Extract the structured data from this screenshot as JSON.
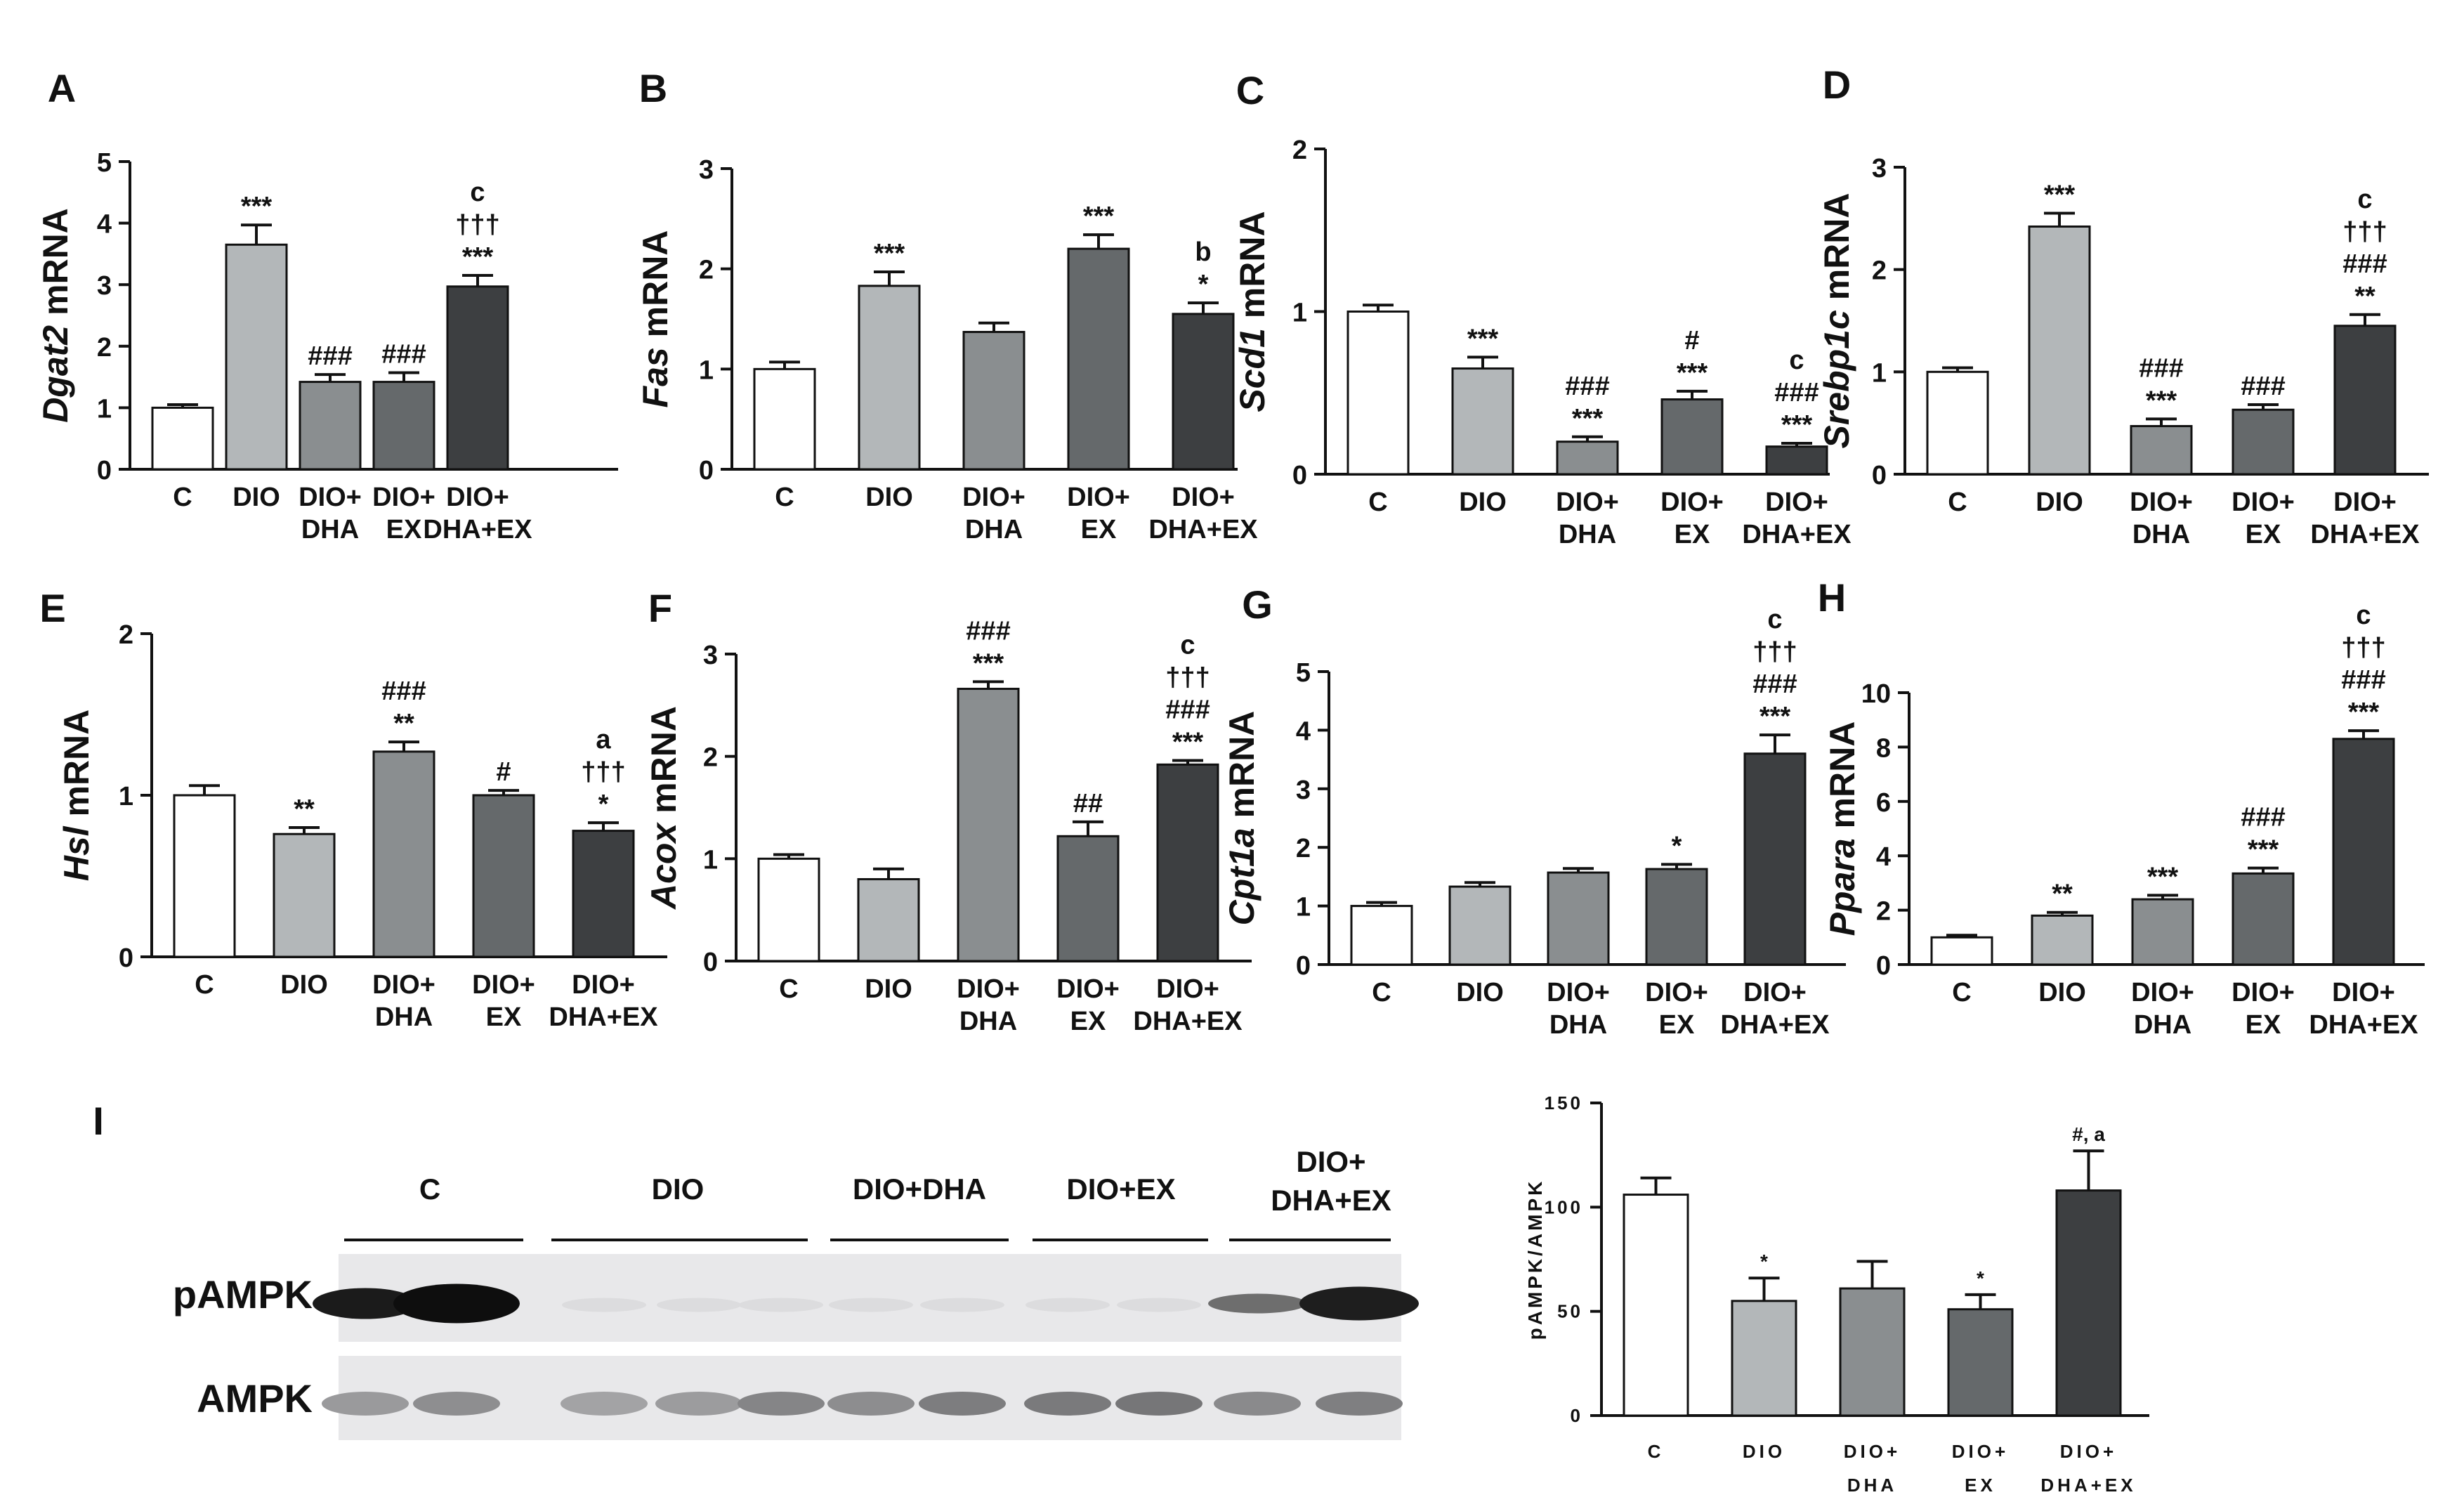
{
  "figure": {
    "colors": [
      "#ffffff",
      "#b3b7b9",
      "#8a8e90",
      "#65696b",
      "#3d3f41"
    ]
  },
  "chart_data": [
    {
      "panel": "A",
      "type": "bar",
      "ylabel_gene": "Dgat2",
      "ylabel_suffix": " mRNA",
      "categories": [
        [
          "C"
        ],
        [
          "DIO"
        ],
        [
          "DIO+",
          "DHA"
        ],
        [
          "DIO+",
          "EX"
        ],
        [
          "DIO+",
          "DHA+EX"
        ]
      ],
      "values": [
        1.0,
        3.65,
        1.42,
        1.42,
        2.97
      ],
      "errors": [
        0.05,
        0.32,
        0.12,
        0.15,
        0.18
      ],
      "ylim": [
        0,
        5
      ],
      "yticks": [
        0,
        1,
        2,
        3,
        4,
        5
      ],
      "annotations": [
        [],
        [
          "***"
        ],
        [
          "###"
        ],
        [
          "###"
        ],
        [
          "c",
          "†††",
          "***"
        ]
      ]
    },
    {
      "panel": "B",
      "type": "bar",
      "ylabel_gene": "Fas",
      "ylabel_suffix": " mRNA",
      "categories": [
        [
          "C"
        ],
        [
          "DIO"
        ],
        [
          "DIO+",
          "DHA"
        ],
        [
          "DIO+",
          "EX"
        ],
        [
          "DIO+",
          "DHA+EX"
        ]
      ],
      "values": [
        1.0,
        1.83,
        1.37,
        2.2,
        1.55
      ],
      "errors": [
        0.07,
        0.14,
        0.09,
        0.14,
        0.11
      ],
      "ylim": [
        0,
        3
      ],
      "yticks": [
        0,
        1,
        2,
        3
      ],
      "annotations": [
        [],
        [
          "***"
        ],
        [],
        [
          "***"
        ],
        [
          "b",
          "*"
        ]
      ]
    },
    {
      "panel": "C",
      "type": "bar",
      "ylabel_gene": "Scd1",
      "ylabel_suffix": " mRNA",
      "categories": [
        [
          "C"
        ],
        [
          "DIO"
        ],
        [
          "DIO+",
          "DHA"
        ],
        [
          "DIO+",
          "EX"
        ],
        [
          "DIO+",
          "DHA+EX"
        ]
      ],
      "values": [
        1.0,
        0.65,
        0.2,
        0.46,
        0.17
      ],
      "errors": [
        0.04,
        0.07,
        0.03,
        0.05,
        0.02
      ],
      "ylim": [
        0,
        2
      ],
      "yticks": [
        0,
        1,
        2
      ],
      "annotations": [
        [],
        [
          "***"
        ],
        [
          "###",
          "***"
        ],
        [
          "#",
          "***"
        ],
        [
          "c",
          "###",
          "***"
        ]
      ]
    },
    {
      "panel": "D",
      "type": "bar",
      "ylabel_gene": "Srebp1c",
      "ylabel_suffix": " mRNA",
      "categories": [
        [
          "C"
        ],
        [
          "DIO"
        ],
        [
          "DIO+",
          "DHA"
        ],
        [
          "DIO+",
          "EX"
        ],
        [
          "DIO+",
          "DHA+EX"
        ]
      ],
      "values": [
        1.0,
        2.42,
        0.47,
        0.63,
        1.45
      ],
      "errors": [
        0.04,
        0.13,
        0.07,
        0.05,
        0.11
      ],
      "ylim": [
        0,
        3
      ],
      "yticks": [
        0,
        1,
        2,
        3
      ],
      "annotations": [
        [],
        [
          "***"
        ],
        [
          "###",
          "***"
        ],
        [
          "###"
        ],
        [
          "c",
          "†††",
          "###",
          "**"
        ]
      ]
    },
    {
      "panel": "E",
      "type": "bar",
      "ylabel_gene": "Hsl",
      "ylabel_suffix": " mRNA",
      "categories": [
        [
          "C"
        ],
        [
          "DIO"
        ],
        [
          "DIO+",
          "DHA"
        ],
        [
          "DIO+",
          "EX"
        ],
        [
          "DIO+",
          "DHA+EX"
        ]
      ],
      "values": [
        1.0,
        0.76,
        1.27,
        1.0,
        0.78
      ],
      "errors": [
        0.06,
        0.04,
        0.06,
        0.03,
        0.05
      ],
      "ylim": [
        0,
        2
      ],
      "yticks": [
        0,
        1,
        2
      ],
      "annotations": [
        [],
        [
          "**"
        ],
        [
          "###",
          "**"
        ],
        [
          "#"
        ],
        [
          "a",
          "†††",
          "*"
        ]
      ]
    },
    {
      "panel": "F",
      "type": "bar",
      "ylabel_gene": "Acox",
      "ylabel_suffix": " mRNA",
      "categories": [
        [
          "C"
        ],
        [
          "DIO"
        ],
        [
          "DIO+",
          "DHA"
        ],
        [
          "DIO+",
          "EX"
        ],
        [
          "DIO+",
          "DHA+EX"
        ]
      ],
      "values": [
        1.0,
        0.8,
        2.66,
        1.22,
        1.92
      ],
      "errors": [
        0.04,
        0.1,
        0.07,
        0.14,
        0.04
      ],
      "ylim": [
        0,
        3
      ],
      "yticks": [
        0,
        1,
        2,
        3
      ],
      "annotations": [
        [],
        [],
        [
          "###",
          "***"
        ],
        [
          "##"
        ],
        [
          "c",
          "†††",
          "###",
          "***"
        ]
      ]
    },
    {
      "panel": "G",
      "type": "bar",
      "ylabel_gene": "Cpt1a",
      "ylabel_suffix": " mRNA",
      "categories": [
        [
          "C"
        ],
        [
          "DIO"
        ],
        [
          "DIO+",
          "DHA"
        ],
        [
          "DIO+",
          "EX"
        ],
        [
          "DIO+",
          "DHA+EX"
        ]
      ],
      "values": [
        1.0,
        1.33,
        1.57,
        1.63,
        3.6
      ],
      "errors": [
        0.06,
        0.07,
        0.07,
        0.08,
        0.32
      ],
      "ylim": [
        0,
        5
      ],
      "yticks": [
        0,
        1,
        2,
        3,
        4,
        5
      ],
      "annotations": [
        [],
        [],
        [],
        [
          "*"
        ],
        [
          "c",
          "†††",
          "###",
          "***"
        ]
      ]
    },
    {
      "panel": "H",
      "type": "bar",
      "ylabel_gene": "Ppara",
      "ylabel_suffix": " mRNA",
      "categories": [
        [
          "C"
        ],
        [
          "DIO"
        ],
        [
          "DIO+",
          "DHA"
        ],
        [
          "DIO+",
          "EX"
        ],
        [
          "DIO+",
          "DHA+EX"
        ]
      ],
      "values": [
        1.0,
        1.8,
        2.4,
        3.35,
        8.3
      ],
      "errors": [
        0.08,
        0.12,
        0.15,
        0.2,
        0.3
      ],
      "ylim": [
        0,
        10
      ],
      "yticks": [
        0,
        2,
        4,
        6,
        8,
        10
      ],
      "annotations": [
        [],
        [
          "**"
        ],
        [
          "***"
        ],
        [
          "###",
          "***"
        ],
        [
          "c",
          "†††",
          "###",
          "***"
        ]
      ]
    },
    {
      "panel": "I",
      "type": "bar",
      "ylabel": "pAMPK/AMPK",
      "categories": [
        [
          "C"
        ],
        [
          "DIO"
        ],
        [
          "DIO+",
          "DHA"
        ],
        [
          "DIO+",
          "EX"
        ],
        [
          "DIO+",
          "DHA+EX"
        ]
      ],
      "values": [
        106,
        55,
        61,
        51,
        108
      ],
      "errors": [
        8,
        11,
        13,
        7,
        19
      ],
      "ylim": [
        0,
        150
      ],
      "yticks": [
        0,
        50,
        100,
        150
      ],
      "annotations": [
        [],
        [
          "*"
        ],
        [],
        [
          "*"
        ],
        [
          "#, a"
        ]
      ]
    }
  ],
  "blot": {
    "panel": "I",
    "groups": [
      [
        "C"
      ],
      [
        "DIO"
      ],
      [
        "DIO+DHA"
      ],
      [
        "DIO+EX"
      ],
      [
        "DIO+",
        "DHA+EX"
      ]
    ],
    "rows": [
      "pAMPK",
      "AMPK"
    ]
  }
}
